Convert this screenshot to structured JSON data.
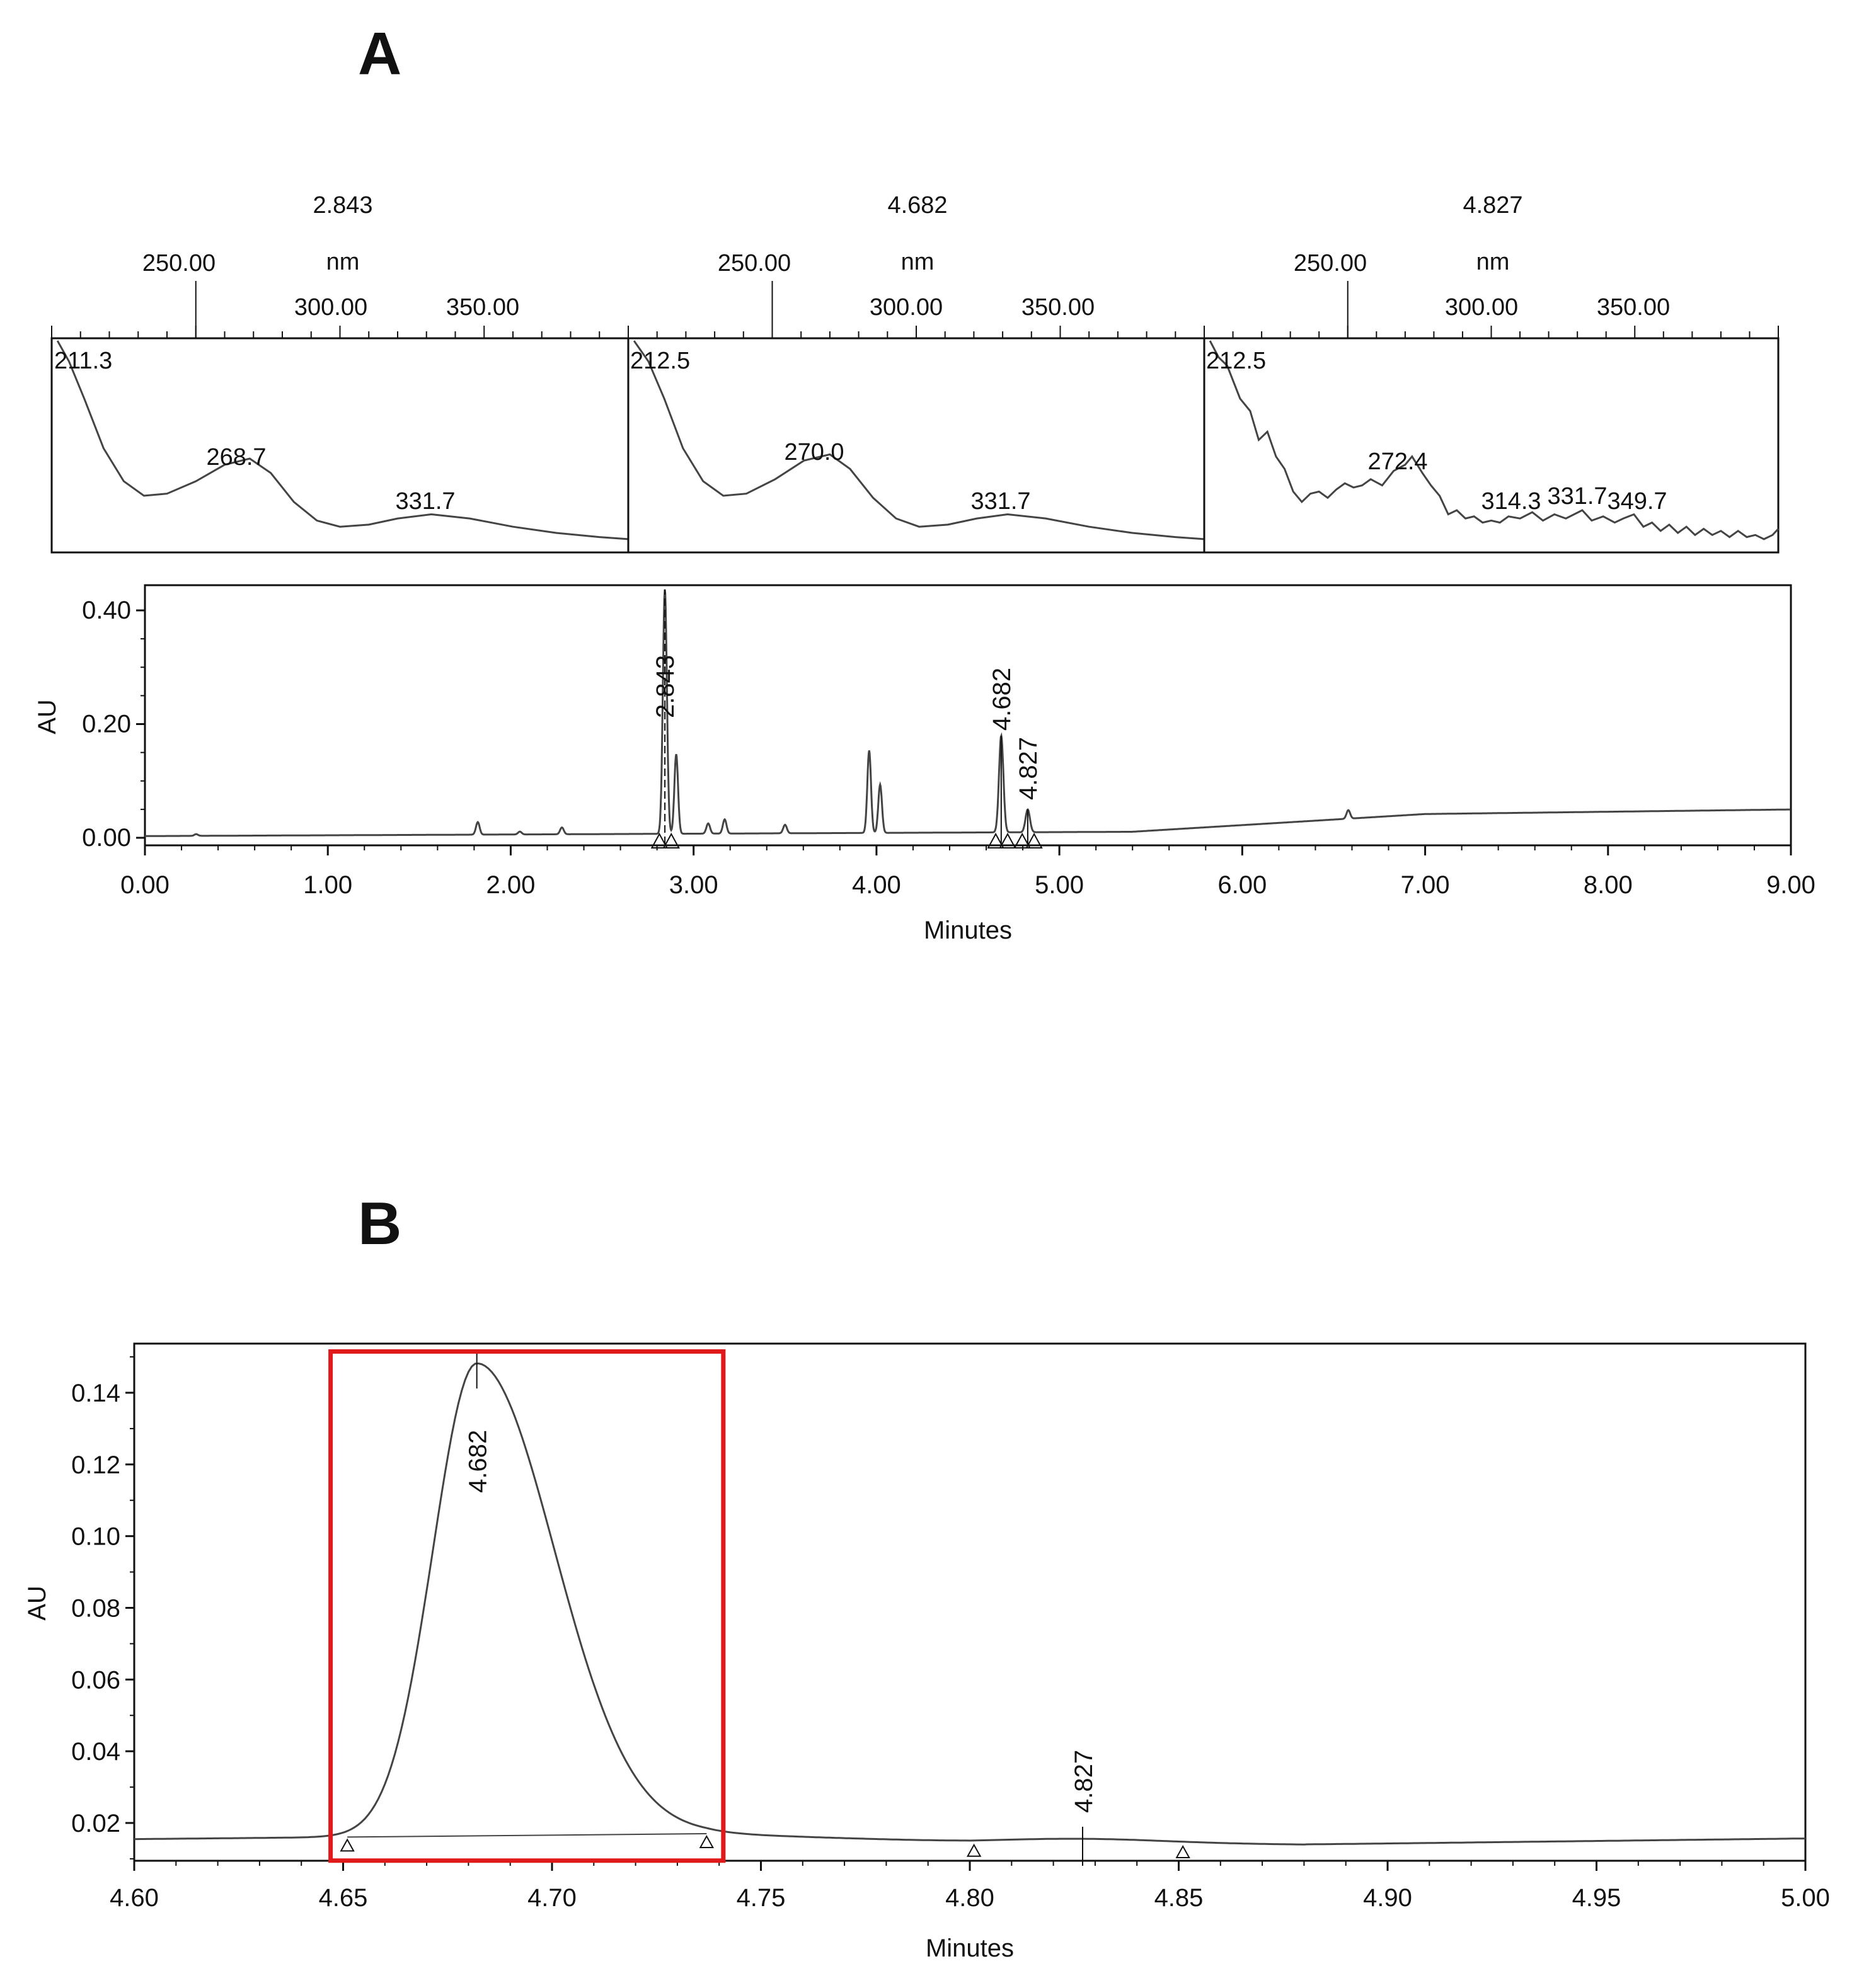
{
  "figure": {
    "panels": [
      "A",
      "B"
    ]
  },
  "colors": {
    "line": "#444444",
    "frame": "#111111",
    "highlight": "#e0191b"
  },
  "chart_data": [
    {
      "id": "uv-spectra",
      "type": "line",
      "panel": "A",
      "xunit": "nm",
      "axis_ticks": [
        "250.00",
        "300.00",
        "350.00"
      ],
      "xlim": [
        200,
        400
      ],
      "spectra": [
        {
          "rt": "2.843",
          "peaks": [
            {
              "nm": "211.3",
              "x": 211.3
            },
            {
              "nm": "268.7",
              "x": 268.7
            },
            {
              "nm": "331.7",
              "x": 331.7
            }
          ],
          "points": [
            [
              202,
              1.0
            ],
            [
              206,
              0.9
            ],
            [
              211.3,
              0.72
            ],
            [
              218,
              0.48
            ],
            [
              225,
              0.32
            ],
            [
              232,
              0.25
            ],
            [
              240,
              0.26
            ],
            [
              250,
              0.32
            ],
            [
              260,
              0.4
            ],
            [
              268.7,
              0.43
            ],
            [
              276,
              0.36
            ],
            [
              284,
              0.22
            ],
            [
              292,
              0.13
            ],
            [
              300,
              0.1
            ],
            [
              310,
              0.11
            ],
            [
              320,
              0.14
            ],
            [
              331.7,
              0.16
            ],
            [
              345,
              0.14
            ],
            [
              360,
              0.1
            ],
            [
              375,
              0.07
            ],
            [
              390,
              0.05
            ],
            [
              400,
              0.04
            ]
          ]
        },
        {
          "rt": "4.682",
          "peaks": [
            {
              "nm": "212.5",
              "x": 212.5
            },
            {
              "nm": "270.0",
              "x": 270.0
            },
            {
              "nm": "331.7",
              "x": 331.7
            }
          ],
          "points": [
            [
              202,
              1.0
            ],
            [
              207,
              0.9
            ],
            [
              212.5,
              0.72
            ],
            [
              219,
              0.48
            ],
            [
              226,
              0.32
            ],
            [
              233,
              0.25
            ],
            [
              241,
              0.26
            ],
            [
              251,
              0.33
            ],
            [
              261,
              0.42
            ],
            [
              270.0,
              0.45
            ],
            [
              277,
              0.38
            ],
            [
              285,
              0.24
            ],
            [
              293,
              0.14
            ],
            [
              301,
              0.1
            ],
            [
              311,
              0.11
            ],
            [
              321,
              0.14
            ],
            [
              331.7,
              0.16
            ],
            [
              345,
              0.14
            ],
            [
              360,
              0.1
            ],
            [
              375,
              0.07
            ],
            [
              390,
              0.05
            ],
            [
              400,
              0.04
            ]
          ]
        },
        {
          "rt": "4.827",
          "peaks": [
            {
              "nm": "212.5",
              "x": 212.5
            },
            {
              "nm": "272.4",
              "x": 272.4
            },
            {
              "nm": "314.3",
              "x": 314.3
            },
            {
              "nm": "331.7",
              "x": 331.7
            },
            {
              "nm": "349.7",
              "x": 349.7
            }
          ],
          "points": [
            [
              202,
              1.0
            ],
            [
              205,
              0.92
            ],
            [
              208,
              0.88
            ],
            [
              212.5,
              0.72
            ],
            [
              216,
              0.66
            ],
            [
              219,
              0.52
            ],
            [
              222,
              0.56
            ],
            [
              225,
              0.44
            ],
            [
              228,
              0.38
            ],
            [
              231,
              0.27
            ],
            [
              234,
              0.22
            ],
            [
              237,
              0.26
            ],
            [
              240,
              0.27
            ],
            [
              243,
              0.24
            ],
            [
              246,
              0.28
            ],
            [
              249,
              0.31
            ],
            [
              252,
              0.29
            ],
            [
              255,
              0.3
            ],
            [
              258,
              0.33
            ],
            [
              262,
              0.3
            ],
            [
              266,
              0.37
            ],
            [
              270,
              0.4
            ],
            [
              272.4,
              0.44
            ],
            [
              276,
              0.36
            ],
            [
              279,
              0.3
            ],
            [
              282,
              0.25
            ],
            [
              285,
              0.16
            ],
            [
              288,
              0.18
            ],
            [
              291,
              0.14
            ],
            [
              294,
              0.15
            ],
            [
              297,
              0.12
            ],
            [
              300,
              0.13
            ],
            [
              303,
              0.12
            ],
            [
              306,
              0.15
            ],
            [
              310,
              0.14
            ],
            [
              314.3,
              0.17
            ],
            [
              318,
              0.13
            ],
            [
              322,
              0.16
            ],
            [
              326,
              0.14
            ],
            [
              331.7,
              0.18
            ],
            [
              335,
              0.13
            ],
            [
              339,
              0.15
            ],
            [
              343,
              0.12
            ],
            [
              346,
              0.14
            ],
            [
              349.7,
              0.16
            ],
            [
              353,
              0.1
            ],
            [
              356,
              0.12
            ],
            [
              359,
              0.08
            ],
            [
              362,
              0.11
            ],
            [
              365,
              0.07
            ],
            [
              368,
              0.1
            ],
            [
              371,
              0.06
            ],
            [
              374,
              0.09
            ],
            [
              377,
              0.06
            ],
            [
              380,
              0.08
            ],
            [
              383,
              0.05
            ],
            [
              386,
              0.08
            ],
            [
              389,
              0.05
            ],
            [
              392,
              0.06
            ],
            [
              395,
              0.04
            ],
            [
              398,
              0.06
            ],
            [
              400,
              0.09
            ]
          ]
        }
      ]
    },
    {
      "id": "chromatogram-full",
      "type": "line",
      "panel": "A",
      "xlabel": "Minutes",
      "ylabel": "AU",
      "xlim": [
        0,
        9
      ],
      "ylim": [
        -0.01,
        0.44
      ],
      "xticks": [
        "0.00",
        "1.00",
        "2.00",
        "3.00",
        "4.00",
        "5.00",
        "6.00",
        "7.00",
        "8.00",
        "9.00"
      ],
      "yticks": [
        "0.00",
        "0.20",
        "0.40"
      ],
      "peaks": [
        {
          "label": "2.843",
          "rt": 2.843,
          "height": 0.43
        },
        {
          "label": "4.682",
          "rt": 4.682,
          "height": 0.17
        },
        {
          "label": "4.827",
          "rt": 4.827,
          "height": 0.04
        }
      ],
      "minor_peaks": [
        {
          "rt": 0.28,
          "h": 0.003
        },
        {
          "rt": 1.82,
          "h": 0.022
        },
        {
          "rt": 2.05,
          "h": 0.005
        },
        {
          "rt": 2.28,
          "h": 0.012
        },
        {
          "rt": 2.905,
          "h": 0.14
        },
        {
          "rt": 3.08,
          "h": 0.018
        },
        {
          "rt": 3.17,
          "h": 0.025
        },
        {
          "rt": 3.5,
          "h": 0.015
        },
        {
          "rt": 3.96,
          "h": 0.145
        },
        {
          "rt": 4.02,
          "h": 0.085
        },
        {
          "rt": 6.58,
          "h": 0.015
        }
      ]
    },
    {
      "id": "chromatogram-zoom",
      "type": "line",
      "panel": "B",
      "xlabel": "Minutes",
      "ylabel": "AU",
      "xlim": [
        4.6,
        5.0
      ],
      "ylim": [
        0.0085,
        0.1525
      ],
      "xticks": [
        "4.60",
        "4.65",
        "4.70",
        "4.75",
        "4.80",
        "4.85",
        "4.90",
        "4.95",
        "5.00"
      ],
      "yticks": [
        "0.02",
        "0.04",
        "0.06",
        "0.08",
        "0.10",
        "0.12",
        "0.14"
      ],
      "peaks": [
        {
          "label": "4.682",
          "rt": 4.682,
          "height": 0.147
        },
        {
          "label": "4.827",
          "rt": 4.827,
          "height": 0.0158
        }
      ],
      "integration_marks": [
        4.651,
        4.737,
        4.801,
        4.851
      ],
      "highlight_range": {
        "x0": 4.647,
        "x1": 4.741,
        "y0": 0.0095,
        "y1": 0.1515
      }
    }
  ]
}
